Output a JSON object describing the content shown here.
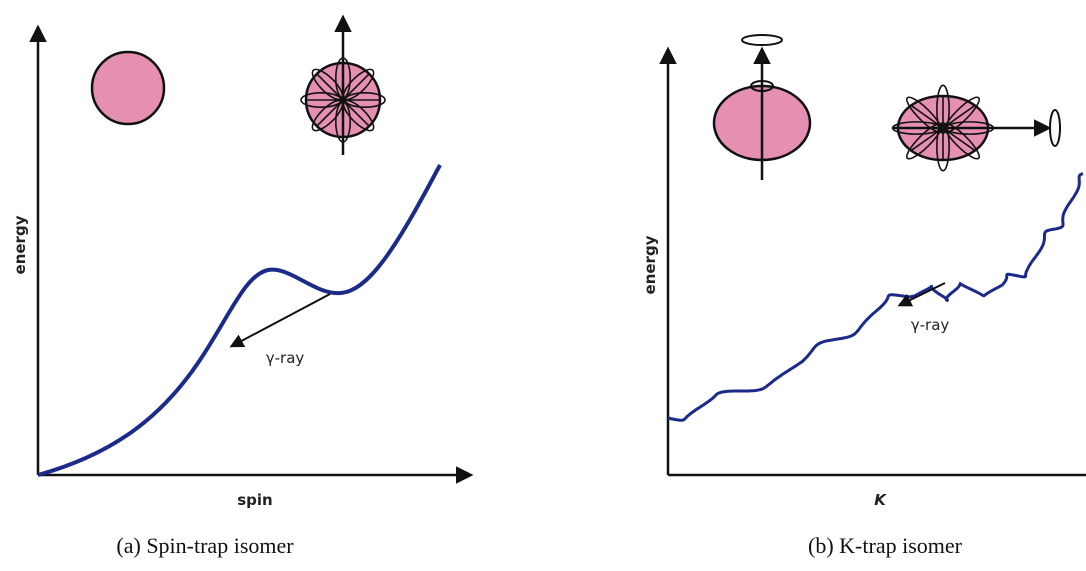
{
  "panels": [
    {
      "y_axis_label": "energy",
      "x_axis_label": "spin",
      "annotation": "γ-ray",
      "caption": "(a) Spin-trap isomer"
    },
    {
      "y_axis_label": "energy",
      "x_axis_label": "K",
      "annotation": "γ-ray",
      "caption": "(b) K-trap isomer"
    }
  ]
}
